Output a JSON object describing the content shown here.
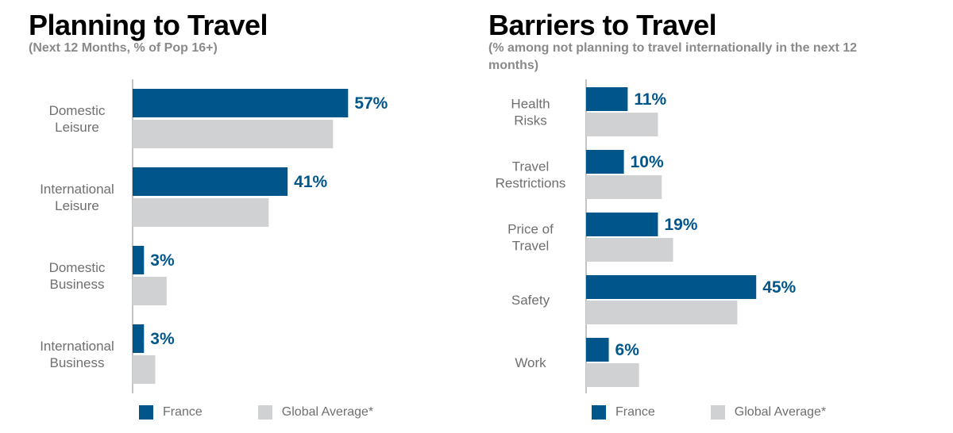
{
  "colors": {
    "france": "#00568a",
    "global": "#d0d1d3",
    "label": "#6f6f6f",
    "axis": "#b0b0b0"
  },
  "legend": {
    "france": "France",
    "global": "Global Average*"
  },
  "chart_data": [
    {
      "type": "bar",
      "orientation": "horizontal",
      "title": "Planning to Travel",
      "subtitle": "(Next 12 Months, % of Pop 16+)",
      "categories": [
        [
          "Domestic",
          "Leisure"
        ],
        [
          "International",
          "Leisure"
        ],
        [
          "Domestic",
          "Business"
        ],
        [
          "International",
          "Business"
        ]
      ],
      "series": [
        {
          "name": "France",
          "values": [
            57,
            41,
            3,
            3
          ],
          "labels": [
            "57%",
            "41%",
            "3%",
            "3%"
          ]
        },
        {
          "name": "Global Average*",
          "values": [
            53,
            36,
            9,
            6
          ]
        }
      ],
      "xlim": [
        0,
        100
      ],
      "grid": false,
      "legend_position": "bottom"
    },
    {
      "type": "bar",
      "orientation": "horizontal",
      "title": "Barriers to Travel",
      "subtitle": "(% among not planning to travel internationally in the next 12 months)",
      "categories": [
        [
          "Health",
          "Risks"
        ],
        [
          "Travel",
          "Restrictions"
        ],
        [
          "Price of",
          "Travel"
        ],
        [
          "Safety"
        ],
        [
          "Work"
        ]
      ],
      "series": [
        {
          "name": "France",
          "values": [
            11,
            10,
            19,
            45,
            6
          ],
          "labels": [
            "11%",
            "10%",
            "19%",
            "45%",
            "6%"
          ]
        },
        {
          "name": "Global Average*",
          "values": [
            19,
            20,
            23,
            40,
            14
          ]
        }
      ],
      "xlim": [
        0,
        100
      ],
      "grid": false,
      "legend_position": "bottom"
    }
  ]
}
